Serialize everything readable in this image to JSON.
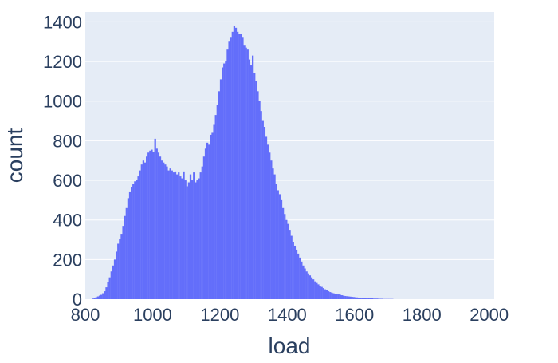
{
  "chart_data": {
    "type": "bar",
    "subtype": "histogram",
    "title": "",
    "xlabel": "load",
    "ylabel": "count",
    "xlim": [
      800,
      2015
    ],
    "ylim": [
      0,
      1450
    ],
    "x_ticks": [
      800,
      1000,
      1200,
      1400,
      1600,
      1800,
      2000
    ],
    "y_ticks": [
      0,
      200,
      400,
      600,
      800,
      1000,
      1200,
      1400
    ],
    "grid": true,
    "colors": {
      "bar": "#636efa",
      "plot_bg": "#e5ecf6",
      "grid": "#ffffff",
      "text": "#2a3f5f"
    },
    "bin_width": 5,
    "x_start": 800,
    "values": [
      0,
      0,
      0,
      0,
      3,
      5,
      10,
      14,
      18,
      22,
      30,
      40,
      60,
      85,
      110,
      140,
      170,
      200,
      240,
      280,
      305,
      330,
      370,
      420,
      460,
      510,
      540,
      565,
      580,
      595,
      600,
      620,
      650,
      680,
      700,
      690,
      720,
      740,
      750,
      755,
      745,
      810,
      760,
      740,
      720,
      700,
      690,
      680,
      670,
      650,
      660,
      650,
      640,
      645,
      630,
      640,
      620,
      610,
      645,
      600,
      570,
      590,
      630,
      600,
      640,
      590,
      600,
      610,
      640,
      670,
      720,
      760,
      790,
      780,
      830,
      840,
      880,
      930,
      980,
      1050,
      1110,
      1170,
      1190,
      1200,
      1260,
      1300,
      1320,
      1350,
      1380,
      1370,
      1350,
      1340,
      1340,
      1320,
      1280,
      1270,
      1260,
      1210,
      1180,
      1230,
      1140,
      1100,
      1050,
      1000,
      950,
      900,
      870,
      820,
      780,
      740,
      700,
      660,
      630,
      580,
      550,
      530,
      500,
      460,
      430,
      400,
      380,
      350,
      320,
      290,
      270,
      250,
      230,
      210,
      190,
      170,
      155,
      140,
      130,
      120,
      110,
      100,
      90,
      82,
      75,
      68,
      62,
      56,
      50,
      45,
      40,
      36,
      33,
      30,
      28,
      26,
      24,
      22,
      20,
      18,
      16,
      15,
      14,
      13,
      12,
      11,
      10,
      9,
      8,
      8,
      7,
      6,
      6,
      5,
      5,
      4,
      4,
      3,
      3,
      3,
      2,
      2,
      2,
      1,
      1,
      1,
      1,
      1,
      1,
      0,
      0,
      0,
      0,
      0,
      0,
      0,
      0,
      0,
      0,
      0,
      0,
      0,
      0,
      0,
      0,
      0
    ]
  }
}
